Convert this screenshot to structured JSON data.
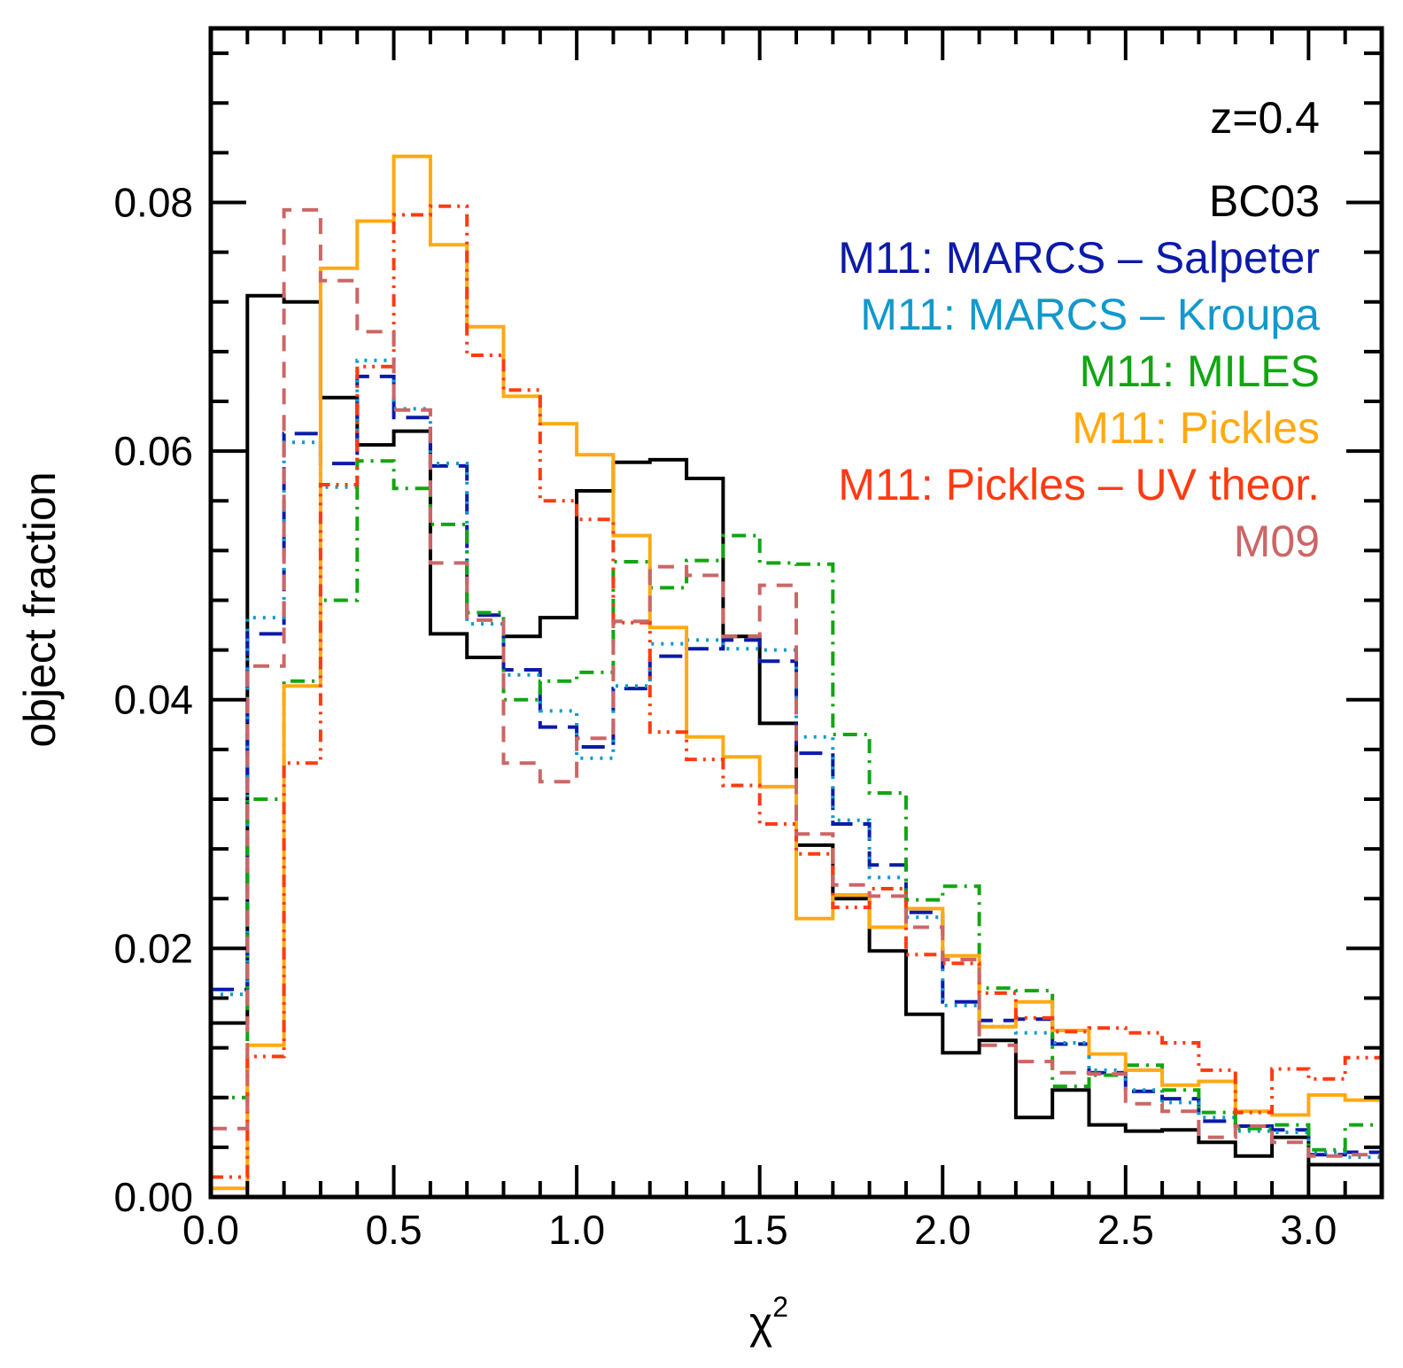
{
  "chart_data": {
    "type": "step-histogram",
    "annotation": "z=0.4",
    "xlabel": "χ",
    "xlabel_superscript": "2",
    "ylabel": "object fraction",
    "xlim": [
      0.0,
      3.2
    ],
    "ylim": [
      0.0,
      0.094
    ],
    "bin_width": 0.1,
    "x_ticks": [
      0.0,
      0.5,
      1.0,
      1.5,
      2.0,
      2.5,
      3.0
    ],
    "x_tick_labels": [
      "0.0",
      "0.5",
      "1.0",
      "1.5",
      "2.0",
      "2.5",
      "3.0"
    ],
    "y_ticks": [
      0.0,
      0.02,
      0.04,
      0.06,
      0.08
    ],
    "y_tick_labels": [
      "0.00",
      "0.02",
      "0.04",
      "0.06",
      "0.08"
    ],
    "legend_position": "top-right",
    "series": [
      {
        "name": "BC03",
        "color": "#000000",
        "dash": "solid",
        "values": [
          0.014,
          0.0725,
          0.072,
          0.0643,
          0.0605,
          0.0616,
          0.0453,
          0.0434,
          0.0451,
          0.0466,
          0.0568,
          0.0591,
          0.0593,
          0.0578,
          0.0451,
          0.0381,
          0.0283,
          0.024,
          0.0198,
          0.0147,
          0.0116,
          0.0126,
          0.0064,
          0.0086,
          0.0058,
          0.0053,
          0.0054,
          0.0044,
          0.0033,
          0.0048,
          0.0026,
          0.0026
        ]
      },
      {
        "name": "M11: MARCS – Salpeter",
        "color": "#0b1aa8",
        "dash": "longdash",
        "values": [
          0.0167,
          0.0453,
          0.0614,
          0.059,
          0.066,
          0.0627,
          0.0588,
          0.0468,
          0.0424,
          0.0378,
          0.0362,
          0.0409,
          0.0435,
          0.0441,
          0.0448,
          0.0431,
          0.0357,
          0.03,
          0.0267,
          0.0229,
          0.0157,
          0.0142,
          0.0143,
          0.0123,
          0.01,
          0.0085,
          0.0079,
          0.0061,
          0.0057,
          0.0054,
          0.0034,
          0.0036
        ]
      },
      {
        "name": "M11: MARCS – Kroupa",
        "color": "#1199cc",
        "dash": "dotted",
        "values": [
          0.0163,
          0.0466,
          0.0607,
          0.0571,
          0.0673,
          0.0634,
          0.059,
          0.0461,
          0.042,
          0.0391,
          0.0353,
          0.0411,
          0.0445,
          0.0448,
          0.0441,
          0.044,
          0.037,
          0.0303,
          0.0257,
          0.0225,
          0.0154,
          0.0137,
          0.0132,
          0.0124,
          0.0102,
          0.0086,
          0.0076,
          0.0064,
          0.0053,
          0.0052,
          0.0036,
          0.0032
        ]
      },
      {
        "name": "M11: MILES",
        "color": "#11a611",
        "dash": "dashdot",
        "values": [
          0.008,
          0.032,
          0.0415,
          0.048,
          0.0592,
          0.057,
          0.0541,
          0.047,
          0.04,
          0.0415,
          0.0422,
          0.0511,
          0.049,
          0.0512,
          0.0532,
          0.051,
          0.0509,
          0.0372,
          0.0325,
          0.0239,
          0.025,
          0.0168,
          0.0166,
          0.0089,
          0.0098,
          0.0106,
          0.0086,
          0.0068,
          0.0055,
          0.0058,
          0.0038,
          0.0058
        ]
      },
      {
        "name": "M11: Pickles",
        "color": "#ffaa11",
        "dash": "solid",
        "values": [
          0.0007,
          0.0122,
          0.0411,
          0.0747,
          0.0785,
          0.0837,
          0.0766,
          0.07,
          0.0644,
          0.0622,
          0.0597,
          0.0532,
          0.0458,
          0.037,
          0.0354,
          0.033,
          0.0224,
          0.0243,
          0.0217,
          0.0232,
          0.0194,
          0.0137,
          0.0157,
          0.0134,
          0.0115,
          0.0102,
          0.009,
          0.0093,
          0.0069,
          0.0066,
          0.0082,
          0.0078
        ]
      },
      {
        "name": "M11: Pickles – UV theor.",
        "color": "#ff3a11",
        "dash": "dashdotdot",
        "values": [
          0.0016,
          0.0113,
          0.0349,
          0.0573,
          0.0668,
          0.079,
          0.0797,
          0.0677,
          0.0649,
          0.056,
          0.0545,
          0.0462,
          0.0374,
          0.0352,
          0.0331,
          0.03,
          0.0276,
          0.0233,
          0.0248,
          0.0195,
          0.0188,
          0.0164,
          0.0144,
          0.0133,
          0.0136,
          0.0132,
          0.0124,
          0.0102,
          0.0068,
          0.0103,
          0.0095,
          0.0112
        ]
      },
      {
        "name": "M09",
        "color": "#cc6666",
        "dash": "dashed",
        "values": [
          0.0055,
          0.0427,
          0.0794,
          0.0737,
          0.0696,
          0.0633,
          0.051,
          0.0464,
          0.0349,
          0.0334,
          0.0369,
          0.0463,
          0.0507,
          0.05,
          0.0451,
          0.0492,
          0.0292,
          0.0251,
          0.0242,
          0.0217,
          0.0191,
          0.0122,
          0.0109,
          0.01,
          0.0099,
          0.0075,
          0.0069,
          0.0048,
          0.0057,
          0.0044,
          0.0033,
          0.0034
        ]
      }
    ]
  }
}
